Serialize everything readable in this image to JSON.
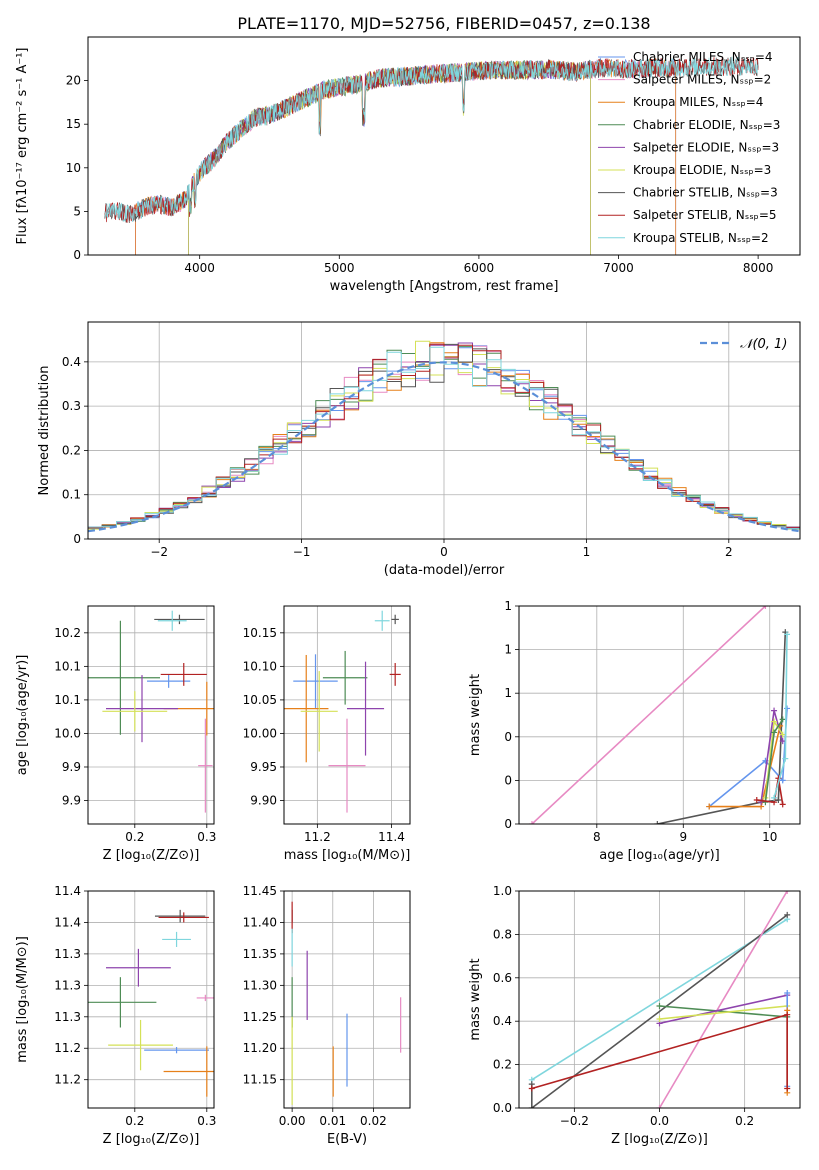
{
  "figure": {
    "title": "PLATE=1170, MJD=52756, FIBERID=0457, z=0.138"
  },
  "chart_data": [
    {
      "id": "spectrum",
      "type": "line",
      "xlabel": "wavelength [Angstrom, rest frame]",
      "ylabel": "Flux [fλ10⁻¹⁷ erg cm⁻² s⁻¹ A⁻¹]",
      "xlim": [
        3200,
        8300
      ],
      "ylim": [
        0,
        25
      ],
      "xticks": [
        4000,
        5000,
        6000,
        7000,
        8000
      ],
      "yticks": [
        0,
        5,
        10,
        15,
        20
      ],
      "grid": false,
      "legend_position": "top-right",
      "series": [
        {
          "name": "Chabrier MILES, Nₛₛₚ=4",
          "color": "#6495ed",
          "x_range": [
            3540,
            7410
          ]
        },
        {
          "name": "Salpeter MILES, Nₛₛₚ=2",
          "color": "#e78ac3",
          "x_range": [
            3540,
            7410
          ]
        },
        {
          "name": "Kroupa MILES, Nₛₛₚ=4",
          "color": "#e6801a",
          "x_range": [
            3540,
            7410
          ]
        },
        {
          "name": "Chabrier ELODIE, Nₛₛₚ=3",
          "color": "#4e8c55",
          "x_range": [
            3920,
            6800
          ]
        },
        {
          "name": "Salpeter ELODIE, Nₛₛₚ=3",
          "color": "#8e44ad",
          "x_range": [
            3920,
            6800
          ]
        },
        {
          "name": "Kroupa ELODIE, Nₛₛₚ=3",
          "color": "#d4e157",
          "x_range": [
            3920,
            6800
          ]
        },
        {
          "name": "Chabrier STELIB, Nₛₛₚ=3",
          "color": "#555555",
          "x_range": [
            3320,
            8000
          ]
        },
        {
          "name": "Salpeter STELIB, Nₛₛₚ=5",
          "color": "#b22222",
          "x_range": [
            3320,
            8000
          ]
        },
        {
          "name": "Kroupa STELIB, Nₛₛₚ=2",
          "color": "#7fd6dd",
          "x_range": [
            3320,
            8000
          ]
        }
      ],
      "continuum": {
        "x": [
          3300,
          3400,
          3500,
          3600,
          3700,
          3800,
          3900,
          4000,
          4100,
          4200,
          4300,
          4400,
          4500,
          4700,
          4900,
          5100,
          5300,
          5500,
          5700,
          5900,
          6100,
          6300,
          6500,
          6700,
          6900,
          7100,
          7300,
          7500,
          7700,
          7900,
          8000
        ],
        "y": [
          4.8,
          5.0,
          4.6,
          5.4,
          5.9,
          5.4,
          6.5,
          9.5,
          11.0,
          13.0,
          14.5,
          15.8,
          16.0,
          17.5,
          19.0,
          19.5,
          20.3,
          20.5,
          20.8,
          21.0,
          21.2,
          21.2,
          21.3,
          21.0,
          21.5,
          21.3,
          21.5,
          21.5,
          21.6,
          21.7,
          21.5
        ]
      }
    },
    {
      "id": "residuals",
      "type": "line",
      "xlabel": "(data-model)/error",
      "ylabel": "Normed distribution",
      "xlim": [
        -2.5,
        2.5
      ],
      "ylim": [
        0,
        0.49
      ],
      "xticks": [
        -2,
        -1,
        0,
        1,
        2
      ],
      "yticks": [
        0.0,
        0.1,
        0.2,
        0.3,
        0.4
      ],
      "grid": true,
      "legend_position": "top-right",
      "reference_curve": {
        "name": "𝒩(0, 1)",
        "mean": 0,
        "sigma": 1,
        "color": "#5b8fd8"
      },
      "histogram_bin_width": 0.1,
      "series_colors": [
        "#6495ed",
        "#e78ac3",
        "#e6801a",
        "#4e8c55",
        "#8e44ad",
        "#d4e157",
        "#555555",
        "#b22222",
        "#7fd6dd"
      ]
    },
    {
      "id": "age-vs-Z",
      "type": "scatter",
      "xlabel": "Z [log₁₀(Z/Z⊙)]",
      "ylabel": "age  [log₁₀(age/yr)]",
      "xlim": [
        0.135,
        0.31
      ],
      "ylim": [
        9.865,
        10.19
      ],
      "xticks": [
        0.2,
        0.3
      ],
      "yticks": [
        9.9,
        9.95,
        10.0,
        10.05,
        10.1,
        10.15
      ],
      "grid": true,
      "points": [
        {
          "color": "#6495ed",
          "x": 0.247,
          "y": 10.078,
          "xerr": 0.03,
          "yerr": 0.01
        },
        {
          "color": "#e78ac3",
          "x": 0.298,
          "y": 9.952,
          "xerr": 0.01,
          "yerr": 0.07
        },
        {
          "color": "#e6801a",
          "x": 0.3,
          "y": 10.037,
          "xerr": 0.06,
          "yerr": 0.04
        },
        {
          "color": "#4e8c55",
          "x": 0.18,
          "y": 10.083,
          "xerr": 0.055,
          "yerr": 0.085
        },
        {
          "color": "#8e44ad",
          "x": 0.21,
          "y": 10.037,
          "xerr": 0.05,
          "yerr": 0.05
        },
        {
          "color": "#d4e157",
          "x": 0.2,
          "y": 10.033,
          "xerr": 0.045,
          "yerr": 0.03
        },
        {
          "color": "#555555",
          "x": 0.262,
          "y": 10.17,
          "xerr": 0.035,
          "yerr": 0.007
        },
        {
          "color": "#b22222",
          "x": 0.268,
          "y": 10.088,
          "xerr": 0.032,
          "yerr": 0.017
        },
        {
          "color": "#7fd6dd",
          "x": 0.252,
          "y": 10.168,
          "xerr": 0.02,
          "yerr": 0.015
        }
      ]
    },
    {
      "id": "age-vs-mass",
      "type": "scatter",
      "xlabel": "mass [log₁₀(M/M⊙)]",
      "ylabel": "",
      "xlim": [
        11.11,
        11.45
      ],
      "ylim": [
        9.865,
        10.19
      ],
      "xticks": [
        11.2,
        11.4
      ],
      "yticks": [
        9.9,
        9.95,
        10.0,
        10.05,
        10.1,
        10.15
      ],
      "grid": true,
      "points": [
        {
          "color": "#6495ed",
          "x": 11.195,
          "y": 10.078,
          "xerr": 0.06,
          "yerr": 0.04
        },
        {
          "color": "#e78ac3",
          "x": 11.28,
          "y": 9.952,
          "xerr": 0.05,
          "yerr": 0.07
        },
        {
          "color": "#e6801a",
          "x": 11.17,
          "y": 10.037,
          "xerr": 0.06,
          "yerr": 0.08
        },
        {
          "color": "#4e8c55",
          "x": 11.275,
          "y": 10.083,
          "xerr": 0.06,
          "yerr": 0.04
        },
        {
          "color": "#8e44ad",
          "x": 11.33,
          "y": 10.037,
          "xerr": 0.05,
          "yerr": 0.07
        },
        {
          "color": "#d4e157",
          "x": 11.205,
          "y": 10.033,
          "xerr": 0.05,
          "yerr": 0.06
        },
        {
          "color": "#555555",
          "x": 11.41,
          "y": 10.17,
          "xerr": 0.01,
          "yerr": 0.007
        },
        {
          "color": "#b22222",
          "x": 11.41,
          "y": 10.088,
          "xerr": 0.015,
          "yerr": 0.017
        },
        {
          "color": "#7fd6dd",
          "x": 11.375,
          "y": 10.168,
          "xerr": 0.02,
          "yerr": 0.015
        }
      ]
    },
    {
      "id": "massweight-vs-age",
      "type": "line",
      "xlabel": "age  [log₁₀(age/yr)]",
      "ylabel": "mass weight",
      "xlim": [
        7.1,
        10.35
      ],
      "ylim": [
        0,
        1.0
      ],
      "xticks": [
        8,
        9,
        10
      ],
      "yticks": [
        0.0,
        0.2,
        0.4,
        0.6,
        0.8,
        1.0
      ],
      "grid": true,
      "series": [
        {
          "color": "#e78ac3",
          "x": [
            7.25,
            9.95
          ],
          "y": [
            0.0,
            1.0
          ]
        },
        {
          "color": "#555555",
          "x": [
            8.7,
            9.9,
            10.1,
            10.18
          ],
          "y": [
            0.0,
            0.1,
            0.11,
            0.88
          ]
        },
        {
          "color": "#6495ed",
          "x": [
            9.3,
            9.95,
            10.15,
            10.2
          ],
          "y": [
            0.08,
            0.29,
            0.2,
            0.53
          ]
        },
        {
          "color": "#e6801a",
          "x": [
            9.3,
            9.9,
            10.12
          ],
          "y": [
            0.08,
            0.08,
            0.45
          ]
        },
        {
          "color": "#8e44ad",
          "x": [
            9.9,
            10.05,
            10.15
          ],
          "y": [
            0.1,
            0.52,
            0.38
          ]
        },
        {
          "color": "#d4e157",
          "x": [
            9.95,
            10.05,
            10.15
          ],
          "y": [
            0.12,
            0.47,
            0.41
          ]
        },
        {
          "color": "#4e8c55",
          "x": [
            9.95,
            10.05,
            10.15
          ],
          "y": [
            0.1,
            0.42,
            0.48
          ]
        },
        {
          "color": "#b22222",
          "x": [
            9.85,
            10.05,
            10.1,
            10.15
          ],
          "y": [
            0.11,
            0.1,
            0.21,
            0.09
          ]
        },
        {
          "color": "#7fd6dd",
          "x": [
            10.05,
            10.18,
            10.2
          ],
          "y": [
            0.12,
            0.3,
            0.87
          ]
        }
      ]
    },
    {
      "id": "mass-vs-Z",
      "type": "scatter",
      "xlabel": "Z [log₁₀(Z/Z⊙)]",
      "ylabel": "mass [log₁₀(M/M⊙)]",
      "xlim": [
        0.135,
        0.31
      ],
      "ylim": [
        11.105,
        11.45
      ],
      "xticks": [
        0.2,
        0.3
      ],
      "yticks": [
        11.15,
        11.2,
        11.25,
        11.3,
        11.35,
        11.4,
        11.45
      ],
      "grid": true,
      "points": [
        {
          "color": "#6495ed",
          "x": 0.258,
          "y": 11.197,
          "xerr": 0.045,
          "yerr": 0.005
        },
        {
          "color": "#e78ac3",
          "x": 0.298,
          "y": 11.28,
          "xerr": 0.012,
          "yerr": 0.005
        },
        {
          "color": "#e6801a",
          "x": 0.3,
          "y": 11.163,
          "xerr": 0.06,
          "yerr": 0.04
        },
        {
          "color": "#4e8c55",
          "x": 0.18,
          "y": 11.273,
          "xerr": 0.05,
          "yerr": 0.04
        },
        {
          "color": "#8e44ad",
          "x": 0.205,
          "y": 11.328,
          "xerr": 0.045,
          "yerr": 0.03
        },
        {
          "color": "#d4e157",
          "x": 0.208,
          "y": 11.205,
          "xerr": 0.045,
          "yerr": 0.04
        },
        {
          "color": "#555555",
          "x": 0.263,
          "y": 11.41,
          "xerr": 0.035,
          "yerr": 0.01
        },
        {
          "color": "#b22222",
          "x": 0.268,
          "y": 11.408,
          "xerr": 0.035,
          "yerr": 0.008
        },
        {
          "color": "#7fd6dd",
          "x": 0.258,
          "y": 11.373,
          "xerr": 0.02,
          "yerr": 0.012
        }
      ]
    },
    {
      "id": "mass-vs-ebv",
      "type": "scatter",
      "xlabel": "E(B-V)",
      "ylabel": "",
      "xlim": [
        -0.002,
        0.029
      ],
      "ylim": [
        11.105,
        11.45
      ],
      "xticks": [
        0.0,
        0.01,
        0.02
      ],
      "yticks": [
        11.15,
        11.2,
        11.25,
        11.3,
        11.35,
        11.4,
        11.45
      ],
      "grid": true,
      "points": [
        {
          "color": "#6495ed",
          "x": 0.0135,
          "y": 11.197,
          "xerr": 0.0,
          "yerr": 0.058
        },
        {
          "color": "#e78ac3",
          "x": 0.0267,
          "y": 11.237,
          "xerr": 0.0,
          "yerr": 0.044
        },
        {
          "color": "#e6801a",
          "x": 0.0101,
          "y": 11.163,
          "xerr": 0.0,
          "yerr": 0.04
        },
        {
          "color": "#4e8c55",
          "x": 0.0,
          "y": 11.273,
          "xerr": 0.0,
          "yerr": 0.04
        },
        {
          "color": "#8e44ad",
          "x": 0.0037,
          "y": 11.3,
          "xerr": 0.0,
          "yerr": 0.055
        },
        {
          "color": "#d4e157",
          "x": 0.0,
          "y": 11.18,
          "xerr": 0.0,
          "yerr": 0.07
        },
        {
          "color": "#555555",
          "x": 0.0,
          "y": 11.41,
          "xerr": 0.0,
          "yerr": 0.01
        },
        {
          "color": "#b22222",
          "x": 0.0,
          "y": 11.408,
          "xerr": 0.0,
          "yerr": 0.025
        },
        {
          "color": "#7fd6dd",
          "x": 0.0,
          "y": 11.36,
          "xerr": 0.0,
          "yerr": 0.03
        }
      ]
    },
    {
      "id": "massweight-vs-Z",
      "type": "line",
      "xlabel": "Z [log₁₀(Z/Z⊙)]",
      "ylabel": "mass weight",
      "xlim": [
        -0.33,
        0.33
      ],
      "ylim": [
        0,
        1.0
      ],
      "xticks": [
        -0.2,
        0.0,
        0.2
      ],
      "yticks": [
        0.0,
        0.2,
        0.4,
        0.6,
        0.8,
        1.0
      ],
      "grid": true,
      "series": [
        {
          "color": "#7fd6dd",
          "x": [
            -0.3,
            0.3
          ],
          "y": [
            0.13,
            0.87
          ]
        },
        {
          "color": "#555555",
          "x": [
            -0.3,
            -0.3,
            0.3
          ],
          "y": [
            0.11,
            0.0,
            0.89
          ]
        },
        {
          "color": "#e78ac3",
          "x": [
            0.0,
            0.3
          ],
          "y": [
            0.0,
            1.0
          ]
        },
        {
          "color": "#4e8c55",
          "x": [
            0.0,
            0.3
          ],
          "y": [
            0.47,
            0.42
          ]
        },
        {
          "color": "#8e44ad",
          "x": [
            0.0,
            0.3
          ],
          "y": [
            0.39,
            0.52
          ]
        },
        {
          "color": "#d4e157",
          "x": [
            0.0,
            0.3
          ],
          "y": [
            0.41,
            0.47
          ]
        },
        {
          "color": "#6495ed",
          "x": [
            0.3,
            0.3
          ],
          "y": [
            0.1,
            0.53
          ]
        },
        {
          "color": "#e6801a",
          "x": [
            0.3,
            0.3
          ],
          "y": [
            0.07,
            0.45
          ]
        },
        {
          "color": "#b22222",
          "x": [
            -0.3,
            0.3,
            0.3
          ],
          "y": [
            0.09,
            0.43,
            0.09
          ]
        }
      ]
    }
  ]
}
